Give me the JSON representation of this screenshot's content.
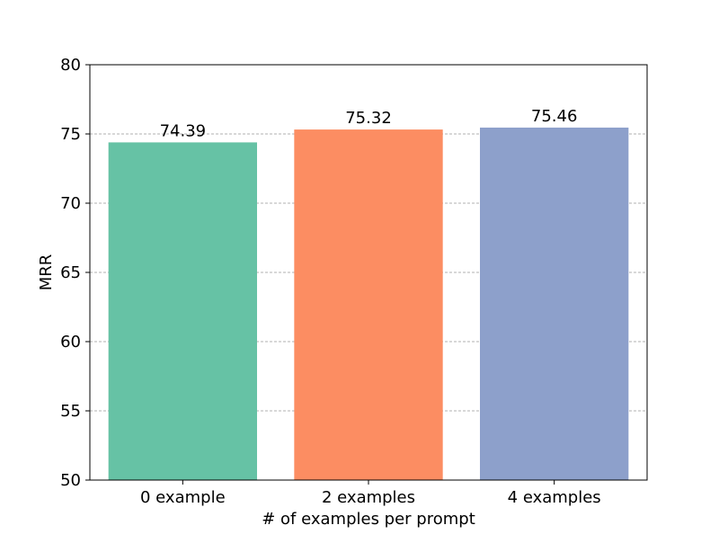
{
  "chart_data": {
    "type": "bar",
    "title": "",
    "xlabel": "# of examples per prompt",
    "ylabel": "MRR",
    "categories": [
      "0 example",
      "2 examples",
      "4 examples"
    ],
    "values": [
      74.39,
      75.32,
      75.46
    ],
    "value_labels": [
      "74.39",
      "75.32",
      "75.46"
    ],
    "colors": [
      "#66c2a5",
      "#fc8d62",
      "#8da0cb"
    ],
    "ylim": [
      50,
      80
    ],
    "yticks": [
      50,
      55,
      60,
      65,
      70,
      75,
      80
    ],
    "ytick_labels": [
      "50",
      "55",
      "60",
      "65",
      "70",
      "75",
      "80"
    ],
    "grid": {
      "axis": "y",
      "style": "dashed",
      "color": "#b0b0b0"
    }
  }
}
